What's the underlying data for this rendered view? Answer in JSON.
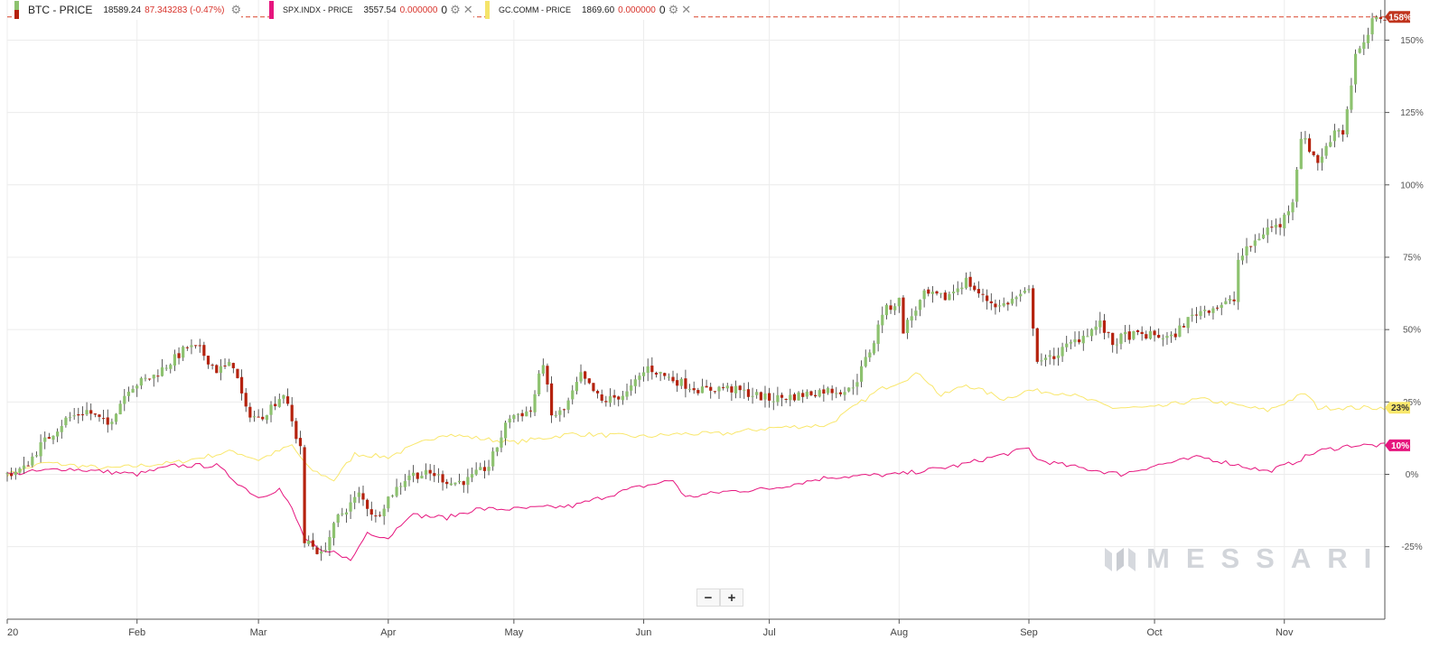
{
  "legend": {
    "btc": {
      "name": "BTC - PRICE",
      "price": "18589.24",
      "change": "87.343283 (-0.47%)",
      "color": "#c0392b"
    },
    "spx": {
      "name": "SPX.INDX - PRICE",
      "price": "3557.54",
      "change": "0.000000",
      "zero": "0",
      "color": "#e6157e"
    },
    "gc": {
      "name": "GC.COMM - PRICE",
      "price": "1869.60",
      "change": "0.000000",
      "zero": "0",
      "color": "#f5e46a"
    }
  },
  "watermark": "MESSARI",
  "zoom": {
    "minus": "−",
    "plus": "+"
  },
  "colors": {
    "up": "#8dc26f",
    "down": "#b5220e",
    "spx": "#e6157e",
    "gold": "#f9e76c",
    "grid": "#ececec"
  },
  "chart_data": {
    "type": "line",
    "ylim": [
      -50,
      162
    ],
    "y_ticks": [
      -25,
      0,
      25,
      50,
      75,
      100,
      125,
      150
    ],
    "y_tick_labels": [
      "-25%",
      "0%",
      "25%",
      "50%",
      "75%",
      "100%",
      "125%",
      "150%"
    ],
    "x_range": [
      "2020-01-01",
      "2020-11-25"
    ],
    "x_ticks": [
      {
        "date": "2020-01-01",
        "label": "20"
      },
      {
        "date": "2020-02-01",
        "label": "Feb"
      },
      {
        "date": "2020-03-01",
        "label": "Mar"
      },
      {
        "date": "2020-04-01",
        "label": "Apr"
      },
      {
        "date": "2020-05-01",
        "label": "May"
      },
      {
        "date": "2020-06-01",
        "label": "Jun"
      },
      {
        "date": "2020-07-01",
        "label": "Jul"
      },
      {
        "date": "2020-08-01",
        "label": "Aug"
      },
      {
        "date": "2020-09-01",
        "label": "Sep"
      },
      {
        "date": "2020-10-01",
        "label": "Oct"
      },
      {
        "date": "2020-11-01",
        "label": "Nov"
      }
    ],
    "reference_line": 158,
    "end_labels": {
      "btc": "158%",
      "gold": "23%",
      "spx": "10%"
    },
    "btc_close_anchors": [
      [
        "2020-01-01",
        0
      ],
      [
        "2020-01-05",
        2
      ],
      [
        "2020-01-09",
        10
      ],
      [
        "2020-01-15",
        19
      ],
      [
        "2020-01-20",
        22
      ],
      [
        "2020-01-25",
        17
      ],
      [
        "2020-01-30",
        30
      ],
      [
        "2020-02-05",
        34
      ],
      [
        "2020-02-10",
        40
      ],
      [
        "2020-02-13",
        44
      ],
      [
        "2020-02-16",
        43
      ],
      [
        "2020-02-20",
        36
      ],
      [
        "2020-02-24",
        38
      ],
      [
        "2020-02-27",
        22
      ],
      [
        "2020-03-01",
        19
      ],
      [
        "2020-03-07",
        28
      ],
      [
        "2020-03-10",
        13
      ],
      [
        "2020-03-11",
        10
      ],
      [
        "2020-03-12",
        -25
      ],
      [
        "2020-03-13",
        -23
      ],
      [
        "2020-03-16",
        -28
      ],
      [
        "2020-03-20",
        -15
      ],
      [
        "2020-03-25",
        -7
      ],
      [
        "2020-03-29",
        -15
      ],
      [
        "2020-04-01",
        -8
      ],
      [
        "2020-04-06",
        0
      ],
      [
        "2020-04-12",
        0
      ],
      [
        "2020-04-16",
        -3
      ],
      [
        "2020-04-20",
        -2
      ],
      [
        "2020-04-25",
        3
      ],
      [
        "2020-04-30",
        20
      ],
      [
        "2020-05-05",
        22
      ],
      [
        "2020-05-08",
        39
      ],
      [
        "2020-05-10",
        20
      ],
      [
        "2020-05-13",
        22
      ],
      [
        "2020-05-17",
        34
      ],
      [
        "2020-05-22",
        25
      ],
      [
        "2020-05-28",
        28
      ],
      [
        "2020-06-02",
        37
      ],
      [
        "2020-06-06",
        34
      ],
      [
        "2020-06-11",
        31
      ],
      [
        "2020-06-15",
        29
      ],
      [
        "2020-06-20",
        30
      ],
      [
        "2020-06-26",
        28
      ],
      [
        "2020-07-01",
        26
      ],
      [
        "2020-07-07",
        27
      ],
      [
        "2020-07-14",
        29
      ],
      [
        "2020-07-20",
        29
      ],
      [
        "2020-07-22",
        33
      ],
      [
        "2020-07-26",
        46
      ],
      [
        "2020-07-28",
        56
      ],
      [
        "2020-08-01",
        60
      ],
      [
        "2020-08-02",
        50
      ],
      [
        "2020-08-07",
        62
      ],
      [
        "2020-08-12",
        61
      ],
      [
        "2020-08-17",
        67
      ],
      [
        "2020-08-21",
        61
      ],
      [
        "2020-08-25",
        58
      ],
      [
        "2020-08-29",
        61
      ],
      [
        "2020-09-01",
        63
      ],
      [
        "2020-09-03",
        40
      ],
      [
        "2020-09-05",
        39
      ],
      [
        "2020-09-08",
        42
      ],
      [
        "2020-09-14",
        48
      ],
      [
        "2020-09-18",
        52
      ],
      [
        "2020-09-21",
        45
      ],
      [
        "2020-09-24",
        48
      ],
      [
        "2020-10-01",
        48
      ],
      [
        "2020-10-05",
        47
      ],
      [
        "2020-10-08",
        52
      ],
      [
        "2020-10-11",
        56
      ],
      [
        "2020-10-20",
        60
      ],
      [
        "2020-10-21",
        74
      ],
      [
        "2020-10-24",
        79
      ],
      [
        "2020-10-28",
        85
      ],
      [
        "2020-10-31",
        86
      ],
      [
        "2020-11-03",
        95
      ],
      [
        "2020-11-05",
        117
      ],
      [
        "2020-11-09",
        108
      ],
      [
        "2020-11-12",
        115
      ],
      [
        "2020-11-13",
        120
      ],
      [
        "2020-11-15",
        118
      ],
      [
        "2020-11-17",
        135
      ],
      [
        "2020-11-18",
        145
      ],
      [
        "2020-11-20",
        148
      ],
      [
        "2020-11-22",
        156
      ],
      [
        "2020-11-24",
        158
      ],
      [
        "2020-11-25",
        158
      ]
    ],
    "series": [
      {
        "name": "SPX.INDX - PRICE",
        "points": [
          [
            "2020-01-01",
            0
          ],
          [
            "2020-01-15",
            2
          ],
          [
            "2020-02-01",
            0
          ],
          [
            "2020-02-10",
            3
          ],
          [
            "2020-02-20",
            3
          ],
          [
            "2020-02-26",
            -4
          ],
          [
            "2020-03-01",
            -8
          ],
          [
            "2020-03-06",
            -5
          ],
          [
            "2020-03-09",
            -12
          ],
          [
            "2020-03-12",
            -22
          ],
          [
            "2020-03-16",
            -27
          ],
          [
            "2020-03-20",
            -27
          ],
          [
            "2020-03-23",
            -30
          ],
          [
            "2020-03-27",
            -20
          ],
          [
            "2020-04-01",
            -22
          ],
          [
            "2020-04-06",
            -14
          ],
          [
            "2020-04-15",
            -15
          ],
          [
            "2020-04-22",
            -12
          ],
          [
            "2020-05-01",
            -12
          ],
          [
            "2020-05-15",
            -11
          ],
          [
            "2020-05-29",
            -5
          ],
          [
            "2020-06-08",
            -2
          ],
          [
            "2020-06-11",
            -8
          ],
          [
            "2020-06-20",
            -6
          ],
          [
            "2020-07-01",
            -5
          ],
          [
            "2020-07-15",
            -1
          ],
          [
            "2020-08-01",
            0
          ],
          [
            "2020-08-15",
            3
          ],
          [
            "2020-09-01",
            9
          ],
          [
            "2020-09-03",
            5
          ],
          [
            "2020-09-10",
            3
          ],
          [
            "2020-09-23",
            0
          ],
          [
            "2020-10-01",
            3
          ],
          [
            "2020-10-12",
            6
          ],
          [
            "2020-10-28",
            1
          ],
          [
            "2020-11-03",
            4
          ],
          [
            "2020-11-09",
            8
          ],
          [
            "2020-11-17",
            10
          ],
          [
            "2020-11-25",
            10
          ]
        ]
      },
      {
        "name": "GC.COMM - PRICE",
        "points": [
          [
            "2020-01-01",
            0
          ],
          [
            "2020-01-10",
            4
          ],
          [
            "2020-01-25",
            2
          ],
          [
            "2020-02-10",
            4
          ],
          [
            "2020-02-24",
            8
          ],
          [
            "2020-03-01",
            5
          ],
          [
            "2020-03-09",
            10
          ],
          [
            "2020-03-13",
            2
          ],
          [
            "2020-03-19",
            -2
          ],
          [
            "2020-03-24",
            7
          ],
          [
            "2020-04-01",
            6
          ],
          [
            "2020-04-14",
            14
          ],
          [
            "2020-04-25",
            12
          ],
          [
            "2020-05-01",
            11
          ],
          [
            "2020-05-15",
            14
          ],
          [
            "2020-06-01",
            13
          ],
          [
            "2020-06-10",
            14
          ],
          [
            "2020-06-20",
            14
          ],
          [
            "2020-07-01",
            16
          ],
          [
            "2020-07-15",
            17
          ],
          [
            "2020-07-27",
            29
          ],
          [
            "2020-08-06",
            35
          ],
          [
            "2020-08-11",
            27
          ],
          [
            "2020-08-17",
            31
          ],
          [
            "2020-08-26",
            26
          ],
          [
            "2020-09-01",
            29
          ],
          [
            "2020-09-10",
            28
          ],
          [
            "2020-09-21",
            23
          ],
          [
            "2020-10-01",
            23
          ],
          [
            "2020-10-12",
            26
          ],
          [
            "2020-10-28",
            22
          ],
          [
            "2020-11-06",
            28
          ],
          [
            "2020-11-09",
            23
          ],
          [
            "2020-11-18",
            23
          ],
          [
            "2020-11-25",
            23
          ]
        ]
      }
    ]
  }
}
